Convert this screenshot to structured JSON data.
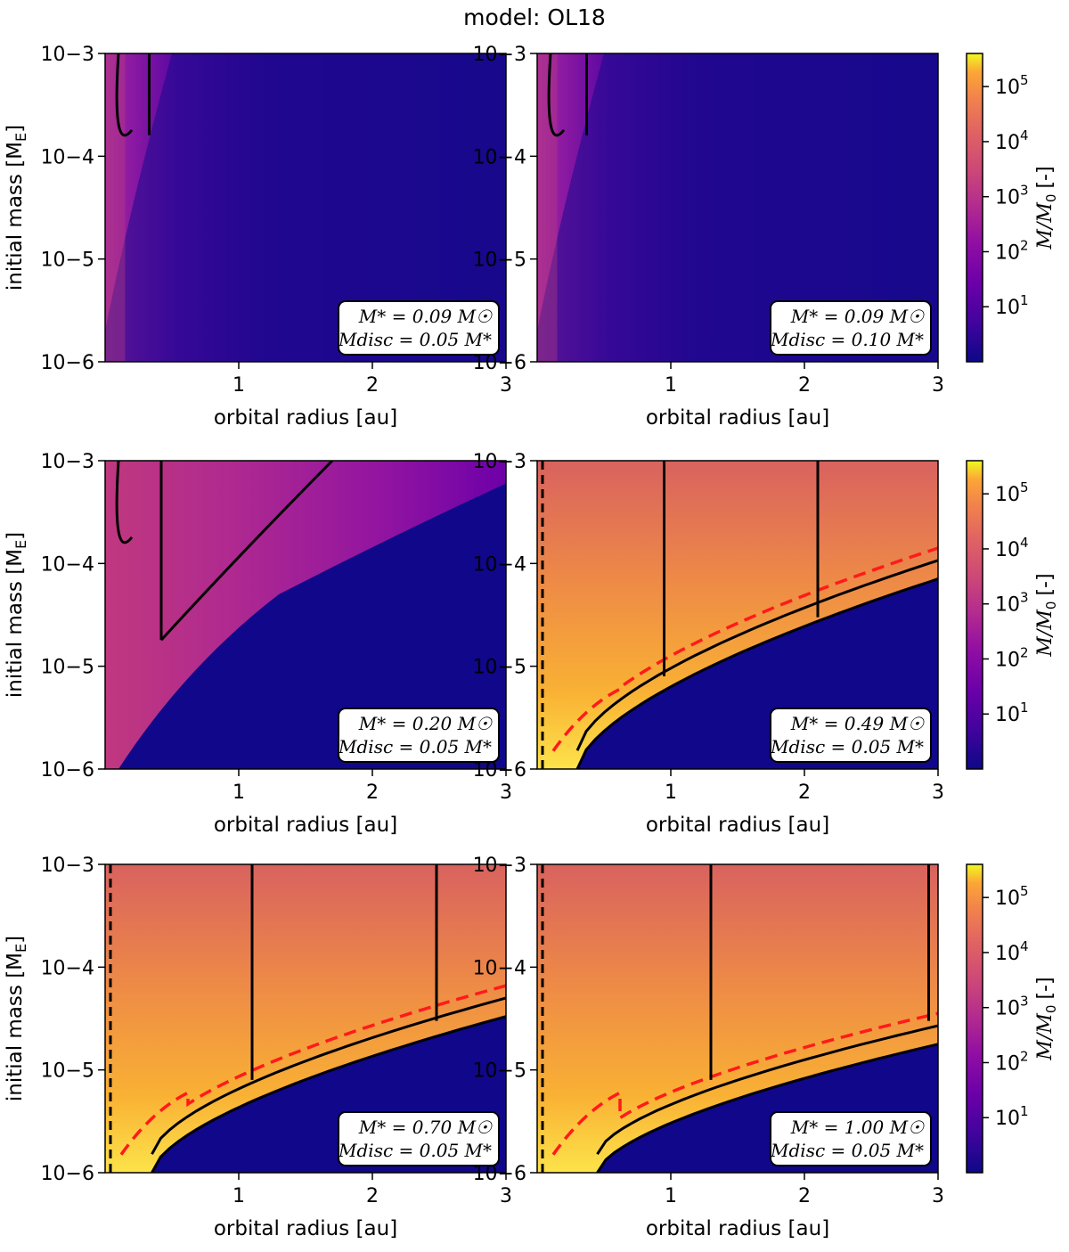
{
  "figure": {
    "title": "model: OL18",
    "xlabel": "orbital radius [au]",
    "ylabel": "initial mass [M",
    "ylabel_sub": "E",
    "ylabel_close": "]"
  },
  "colorbar": {
    "label": "M/M",
    "label_sub": "0",
    "label_unit": "[-]",
    "colormap": "plasma",
    "scale": "log",
    "range": [
      1,
      400000
    ],
    "tick_exponents": [
      "1",
      "2",
      "3",
      "4",
      "5"
    ],
    "tick_base": "10"
  },
  "chart_data": [
    {
      "type": "heatmap",
      "panel": "top-left",
      "mstar": "M* = 0.09 M☉",
      "mdisc": "Mdisc = 0.05 M*",
      "xlim": [
        0,
        3
      ],
      "ylim": [
        1e-06,
        0.001
      ],
      "yscale": "log",
      "xticks": [
        "1",
        "2",
        "3"
      ],
      "yticks": [
        "10−6",
        "10−5",
        "10−4",
        "10−3"
      ],
      "contours": [
        {
          "label": "ML",
          "dashed": false
        },
        {
          "label": "ML",
          "dashed": false
        }
      ],
      "regime": "low"
    },
    {
      "type": "heatmap",
      "panel": "top-right",
      "mstar": "M* = 0.09 M☉",
      "mdisc": "Mdisc = 0.10 M*",
      "xlim": [
        0,
        3
      ],
      "ylim": [
        1e-06,
        0.001
      ],
      "yscale": "log",
      "xticks": [
        "1",
        "2",
        "3"
      ],
      "yticks": [
        "10−6",
        "10−5",
        "10−4",
        "10−3"
      ],
      "contours": [
        {
          "label": "MM",
          "dashed": false
        }
      ],
      "regime": "low"
    },
    {
      "type": "heatmap",
      "panel": "middle-left",
      "mstar": "M* = 0.20 M☉",
      "mdisc": "Mdisc = 0.05 M*",
      "xlim": [
        0,
        3
      ],
      "ylim": [
        1e-06,
        0.001
      ],
      "yscale": "log",
      "xticks": [
        "1",
        "2",
        "3"
      ],
      "yticks": [
        "10−6",
        "10−5",
        "10−4",
        "10−3"
      ],
      "contours": [
        {
          "label": "MM",
          "dashed": false
        },
        {
          "label": "MM",
          "dashed": false
        }
      ],
      "regime": "mid"
    },
    {
      "type": "heatmap",
      "panel": "middle-right",
      "mstar": "M* = 0.49 M☉",
      "mdisc": "Mdisc = 0.05 M*",
      "xlim": [
        0,
        3
      ],
      "ylim": [
        1e-06,
        0.001
      ],
      "yscale": "log",
      "xticks": [
        "1",
        "2",
        "3"
      ],
      "yticks": [
        "10−6",
        "10−5",
        "10−4",
        "10−3"
      ],
      "contours": [
        {
          "label": "ME",
          "dashed": false
        },
        {
          "label": "2ME",
          "dashed": false
        },
        {
          "label": "ME",
          "dashed": false
        },
        {
          "label": "2ME",
          "dashed": false
        },
        {
          "label": "MM",
          "dashed": false
        },
        {
          "label": "MM",
          "dashed": false
        },
        {
          "label": "isolation",
          "dashed": true
        }
      ],
      "regime": "high"
    },
    {
      "type": "heatmap",
      "panel": "bottom-left",
      "mstar": "M* = 0.70 M☉",
      "mdisc": "Mdisc = 0.05 M*",
      "xlim": [
        0,
        3
      ],
      "ylim": [
        1e-06,
        0.001
      ],
      "yscale": "log",
      "xticks": [
        "1",
        "2",
        "3"
      ],
      "yticks": [
        "10−6",
        "10−5",
        "10−4",
        "10−3"
      ],
      "contours": [
        {
          "label": "ME",
          "dashed": false
        },
        {
          "label": "2ME",
          "dashed": false
        },
        {
          "label": "ME",
          "dashed": false
        },
        {
          "label": "MM",
          "dashed": false
        },
        {
          "label": "isolation",
          "dashed": true
        }
      ],
      "regime": "high"
    },
    {
      "type": "heatmap",
      "panel": "bottom-right",
      "mstar": "M* = 1.00 M☉",
      "mdisc": "Mdisc = 0.05 M*",
      "xlim": [
        0,
        3
      ],
      "ylim": [
        1e-06,
        0.001
      ],
      "yscale": "log",
      "xticks": [
        "1",
        "2",
        "3"
      ],
      "yticks": [
        "10−6",
        "10−5",
        "10−4",
        "10−3"
      ],
      "contours": [
        {
          "label": "ME",
          "dashed": false
        },
        {
          "label": "2ME",
          "dashed": false
        },
        {
          "label": "ME",
          "dashed": false
        },
        {
          "label": "MM",
          "dashed": false
        },
        {
          "label": "isolation",
          "dashed": true
        }
      ],
      "regime": "high"
    }
  ]
}
